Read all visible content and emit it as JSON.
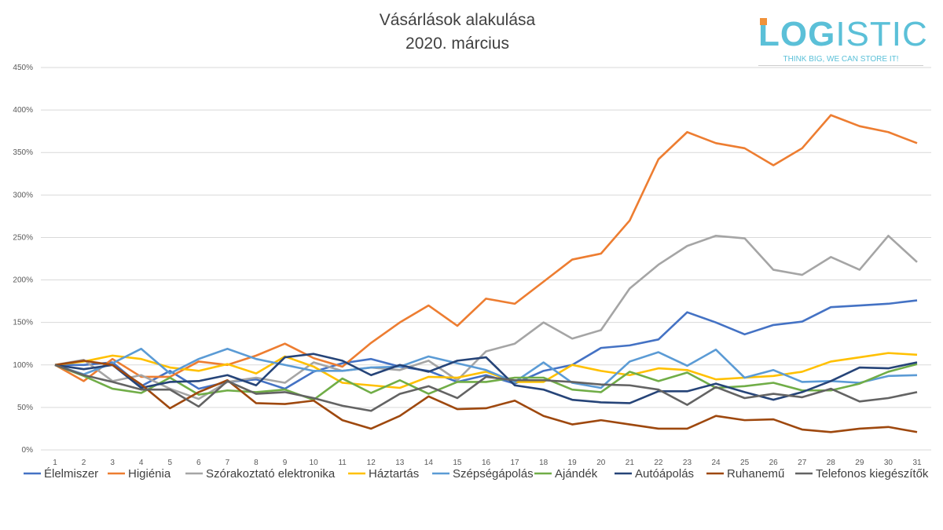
{
  "logo": {
    "text_bold": "LOG",
    "text_light": "ISTIC",
    "tagline": "THINK BIG, WE CAN STORE IT!"
  },
  "chart_data": {
    "type": "line",
    "title": "Vásárlások alakulása",
    "subtitle": "2020. március",
    "xlabel": "",
    "ylabel": "",
    "ylim": [
      0,
      450
    ],
    "y_ticks": [
      "0%",
      "50%",
      "100%",
      "150%",
      "200%",
      "250%",
      "300%",
      "350%",
      "400%",
      "450%"
    ],
    "grid": true,
    "legend": "bottom",
    "x": [
      1,
      2,
      3,
      4,
      5,
      6,
      7,
      8,
      9,
      10,
      11,
      12,
      13,
      14,
      15,
      16,
      17,
      18,
      19,
      20,
      21,
      22,
      23,
      24,
      25,
      26,
      27,
      28,
      29,
      30,
      31
    ],
    "series": [
      {
        "name": "Élelmiszer",
        "color": "#4472C4",
        "values": [
          100,
          100,
          103,
          75,
          93,
          72,
          80,
          83,
          72,
          92,
          102,
          107,
          98,
          93,
          80,
          88,
          78,
          93,
          100,
          120,
          123,
          130,
          162,
          150,
          136,
          147,
          151,
          168,
          170,
          172,
          176
        ]
      },
      {
        "name": "Higiénia",
        "color": "#ED7D31",
        "values": [
          100,
          81,
          107,
          86,
          86,
          104,
          100,
          111,
          125,
          108,
          98,
          126,
          150,
          170,
          146,
          178,
          172,
          198,
          224,
          231,
          270,
          342,
          374,
          361,
          355,
          335,
          355,
          394,
          381,
          374,
          361
        ]
      },
      {
        "name": "Szórakoztató elektronika",
        "color": "#A5A5A5",
        "values": [
          100,
          106,
          81,
          88,
          72,
          60,
          80,
          85,
          79,
          103,
          93,
          97,
          94,
          105,
          82,
          116,
          125,
          150,
          131,
          141,
          190,
          218,
          240,
          252,
          249,
          212,
          206,
          227,
          212,
          252,
          221
        ]
      },
      {
        "name": "Háztartás",
        "color": "#FFC000",
        "values": [
          100,
          104,
          111,
          107,
          97,
          93,
          101,
          90,
          110,
          98,
          79,
          76,
          73,
          86,
          85,
          92,
          80,
          80,
          100,
          93,
          88,
          96,
          94,
          83,
          85,
          87,
          92,
          104,
          109,
          114,
          112
        ]
      },
      {
        "name": "Szépségápolás",
        "color": "#5B9BD5",
        "values": [
          100,
          89,
          102,
          119,
          90,
          107,
          119,
          107,
          100,
          93,
          93,
          97,
          98,
          110,
          102,
          94,
          80,
          103,
          79,
          73,
          104,
          115,
          99,
          118,
          85,
          94,
          80,
          81,
          79,
          87,
          88
        ]
      },
      {
        "name": "Ajándék",
        "color": "#70AD47",
        "values": [
          100,
          87,
          72,
          67,
          85,
          65,
          70,
          68,
          71,
          59,
          84,
          67,
          82,
          66,
          80,
          80,
          85,
          85,
          71,
          68,
          92,
          81,
          91,
          73,
          75,
          79,
          70,
          70,
          78,
          92,
          101
        ]
      },
      {
        "name": "Autóápolás",
        "color": "#264478",
        "values": [
          100,
          95,
          100,
          73,
          80,
          81,
          88,
          76,
          109,
          113,
          105,
          88,
          100,
          92,
          105,
          109,
          76,
          71,
          59,
          56,
          55,
          69,
          69,
          78,
          68,
          59,
          68,
          81,
          97,
          96,
          103
        ]
      },
      {
        "name": "Ruhanemű",
        "color": "#9E480E",
        "values": [
          100,
          105,
          100,
          77,
          49,
          68,
          82,
          55,
          54,
          58,
          35,
          25,
          40,
          63,
          48,
          49,
          58,
          40,
          30,
          35,
          30,
          25,
          25,
          40,
          35,
          36,
          24,
          21,
          25,
          27,
          21
        ]
      },
      {
        "name": "Telefonos kiegészítők",
        "color": "#636363",
        "values": [
          100,
          88,
          80,
          71,
          71,
          51,
          81,
          66,
          68,
          61,
          52,
          46,
          66,
          75,
          61,
          86,
          82,
          82,
          80,
          77,
          76,
          71,
          53,
          74,
          61,
          66,
          62,
          72,
          57,
          61,
          68
        ]
      }
    ]
  }
}
